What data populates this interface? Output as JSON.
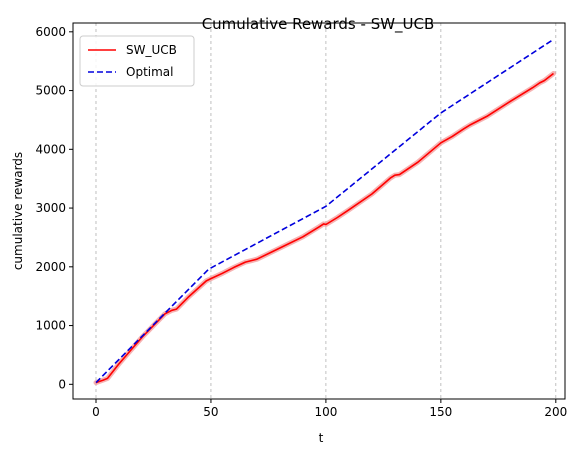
{
  "chart_data": {
    "type": "line",
    "title": "Cumulative Rewards - SW_UCB",
    "xlabel": "t",
    "ylabel": "cumulative rewards",
    "xlim": [
      -10,
      204
    ],
    "ylim": [
      -250,
      6150
    ],
    "xticks": [
      0,
      50,
      100,
      150,
      200
    ],
    "yticks": [
      0,
      1000,
      2000,
      3000,
      4000,
      5000,
      6000
    ],
    "xtick_labels": [
      "0",
      "50",
      "100",
      "150",
      "200"
    ],
    "ytick_labels": [
      "0",
      "1000",
      "2000",
      "3000",
      "4000",
      "5000",
      "6000"
    ],
    "vertical_gridlines_at": [
      0,
      50,
      100,
      150,
      200
    ],
    "legend_position": "upper-left",
    "series": [
      {
        "name": "SW_UCB",
        "color": "#ff0000",
        "style": "solid",
        "band_color": "#f4a0a0",
        "x": [
          0,
          3,
          5,
          10,
          20,
          30,
          33,
          35,
          40,
          48,
          50,
          55,
          60,
          65,
          68,
          70,
          80,
          90,
          97,
          99,
          100,
          105,
          110,
          120,
          128,
          130,
          132,
          140,
          150,
          155,
          160,
          163,
          170,
          180,
          190,
          193,
          195,
          199
        ],
        "y": [
          30,
          70,
          100,
          350,
          800,
          1200,
          1260,
          1280,
          1480,
          1760,
          1800,
          1890,
          1990,
          2080,
          2110,
          2130,
          2320,
          2510,
          2680,
          2730,
          2720,
          2840,
          2970,
          3240,
          3510,
          3560,
          3570,
          3780,
          4110,
          4220,
          4350,
          4420,
          4560,
          4810,
          5050,
          5130,
          5170,
          5290
        ]
      },
      {
        "name": "Optimal",
        "color": "#0000dd",
        "style": "dashed",
        "x": [
          0,
          49,
          100,
          150,
          199
        ],
        "y": [
          30,
          1960,
          3030,
          4620,
          5870
        ]
      }
    ]
  }
}
